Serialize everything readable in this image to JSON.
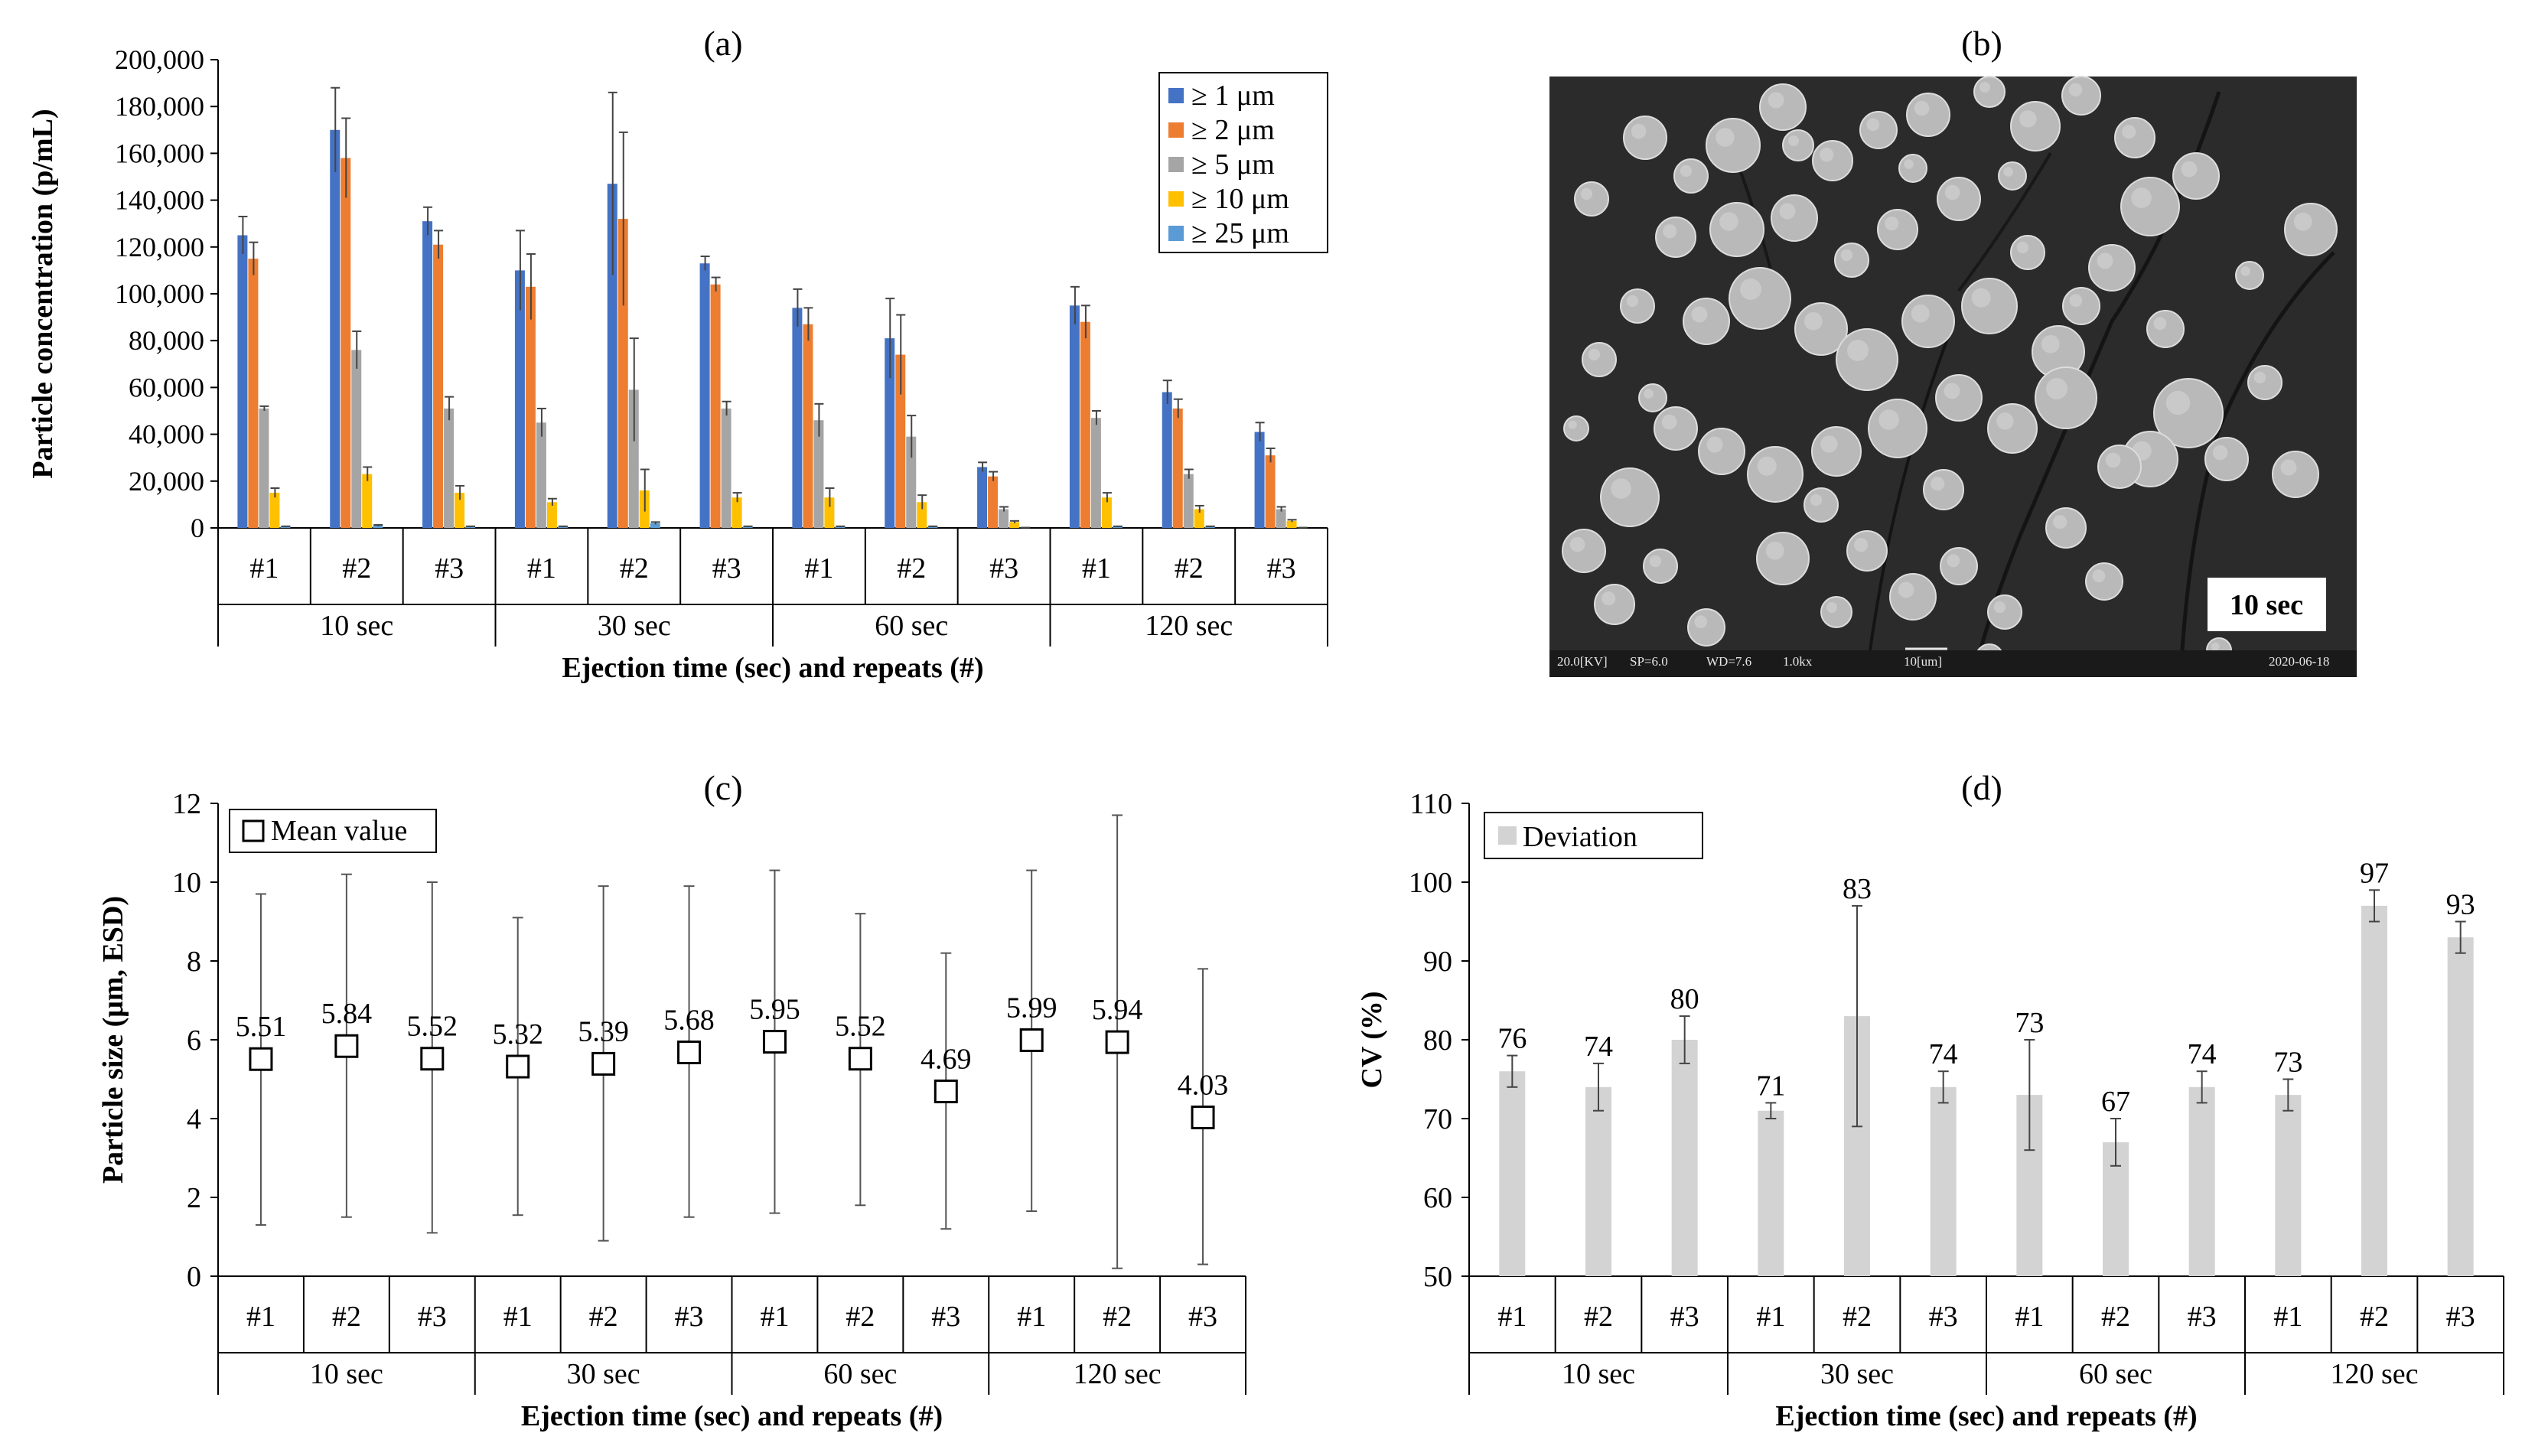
{
  "panel_labels": {
    "a": "(a)",
    "b": "(b)",
    "c": "(c)",
    "d": "(d)"
  },
  "repeat_labels": [
    "#1",
    "#2",
    "#3"
  ],
  "time_groups": [
    "10 sec",
    "30 sec",
    "60 sec",
    "120 sec"
  ],
  "colors": {
    "s1": "#4472C4",
    "s2": "#ED7D31",
    "s5": "#A5A5A5",
    "s10": "#FFC000",
    "s25": "#5B9BD5",
    "cv_bar": "#D3D3D3",
    "axis": "#000000",
    "sem_bg": "#2a2a2a"
  },
  "sem_image": {
    "label": "10 sec",
    "info_kv": "20.0[KV]",
    "info_sp": "SP=6.0",
    "info_wd": "WD=7.6",
    "info_mag": "1.0kx",
    "info_scale": "10[um]",
    "info_date": "2020-06-18"
  },
  "chart_data": [
    {
      "id": "a",
      "type": "bar",
      "title": "(a)",
      "xlabel": "Ejection time (sec) and repeats (#)",
      "ylabel": "Particle concentration (p/mL)",
      "ylim": [
        0,
        200000
      ],
      "yticks": [
        "0",
        "20,000",
        "40,000",
        "60,000",
        "80,000",
        "100,000",
        "120,000",
        "140,000",
        "160,000",
        "180,000",
        "200,000"
      ],
      "legend_position": "top-right",
      "categories": [
        "#1",
        "#2",
        "#3",
        "#1",
        "#2",
        "#3",
        "#1",
        "#2",
        "#3",
        "#1",
        "#2",
        "#3"
      ],
      "groups": [
        "10 sec",
        "30 sec",
        "60 sec",
        "120 sec"
      ],
      "series": [
        {
          "name": "≥ 1 μm",
          "color": "#4472C4",
          "values": [
            125000,
            170000,
            131000,
            110000,
            147000,
            113000,
            94000,
            81000,
            26000,
            95000,
            58000,
            41000
          ],
          "errors": [
            8000,
            18000,
            6000,
            17000,
            39000,
            3000,
            8000,
            17000,
            2000,
            8000,
            5000,
            4000
          ]
        },
        {
          "name": "≥ 2 μm",
          "color": "#ED7D31",
          "values": [
            115000,
            158000,
            121000,
            103000,
            132000,
            104000,
            87000,
            74000,
            22000,
            88000,
            51000,
            31000
          ],
          "errors": [
            7000,
            17000,
            6000,
            14000,
            37000,
            3000,
            7000,
            17000,
            2000,
            7000,
            4000,
            3000
          ]
        },
        {
          "name": "≥ 5 μm",
          "color": "#A5A5A5",
          "values": [
            51000,
            76000,
            51000,
            45000,
            59000,
            51000,
            46000,
            39000,
            8000,
            47000,
            23000,
            8000
          ],
          "errors": [
            1000,
            8000,
            5000,
            6000,
            22000,
            3000,
            7000,
            9000,
            1000,
            3000,
            2000,
            1000
          ]
        },
        {
          "name": "≥ 10 μm",
          "color": "#FFC000",
          "values": [
            15000,
            23000,
            15000,
            11000,
            16000,
            13000,
            13000,
            11000,
            2500,
            13000,
            8000,
            3000
          ],
          "errors": [
            2000,
            3000,
            3000,
            1500,
            9000,
            2000,
            4000,
            3000,
            500,
            2000,
            1500,
            500
          ]
        },
        {
          "name": "≥ 25 μm",
          "color": "#5B9BD5",
          "values": [
            500,
            1000,
            500,
            500,
            2000,
            500,
            500,
            500,
            100,
            500,
            500,
            100
          ],
          "errors": [
            200,
            300,
            200,
            200,
            500,
            200,
            200,
            200,
            50,
            200,
            200,
            50
          ]
        }
      ]
    },
    {
      "id": "c",
      "type": "scatter",
      "title": "(c)",
      "xlabel": "Ejection time (sec) and repeats (#)",
      "ylabel": "Particle size (μm, ESD)",
      "ylim": [
        0,
        12
      ],
      "yticks": [
        "0",
        "2",
        "4",
        "6",
        "8",
        "10",
        "12"
      ],
      "legend_position": "top-left",
      "legend": "Mean value",
      "categories": [
        "#1",
        "#2",
        "#3",
        "#1",
        "#2",
        "#3",
        "#1",
        "#2",
        "#3",
        "#1",
        "#2",
        "#3"
      ],
      "groups": [
        "10 sec",
        "30 sec",
        "60 sec",
        "120 sec"
      ],
      "values": [
        5.51,
        5.84,
        5.52,
        5.32,
        5.39,
        5.68,
        5.95,
        5.52,
        4.69,
        5.99,
        5.94,
        4.03
      ],
      "labels": [
        "5.51",
        "5.84",
        "5.52",
        "5.32",
        "5.39",
        "5.68",
        "5.95",
        "5.52",
        "4.69",
        "5.99",
        "5.94",
        "4.03"
      ],
      "err_high": [
        9.7,
        10.2,
        10.0,
        9.1,
        9.9,
        9.9,
        10.3,
        9.2,
        8.2,
        10.3,
        11.7,
        7.8
      ],
      "err_low": [
        1.3,
        1.5,
        1.1,
        1.55,
        0.9,
        1.5,
        1.6,
        1.8,
        1.2,
        1.65,
        0.2,
        0.3
      ]
    },
    {
      "id": "d",
      "type": "bar",
      "title": "(d)",
      "xlabel": "Ejection time (sec) and repeats (#)",
      "ylabel": "CV (%)",
      "ylim": [
        50,
        110
      ],
      "yticks": [
        "50",
        "60",
        "70",
        "80",
        "90",
        "100",
        "110"
      ],
      "legend_position": "top-left",
      "legend": "Deviation",
      "categories": [
        "#1",
        "#2",
        "#3",
        "#1",
        "#2",
        "#3",
        "#1",
        "#2",
        "#3",
        "#1",
        "#2",
        "#3"
      ],
      "groups": [
        "10 sec",
        "30 sec",
        "60 sec",
        "120 sec"
      ],
      "values": [
        76,
        74,
        80,
        71,
        83,
        74,
        73,
        67,
        74,
        73,
        97,
        93
      ],
      "labels": [
        "76",
        "74",
        "80",
        "71",
        "83",
        "74",
        "73",
        "67",
        "74",
        "73",
        "97",
        "93"
      ],
      "errors": [
        2,
        3,
        3,
        1,
        14,
        2,
        7,
        3,
        2,
        2,
        2,
        2
      ]
    }
  ]
}
